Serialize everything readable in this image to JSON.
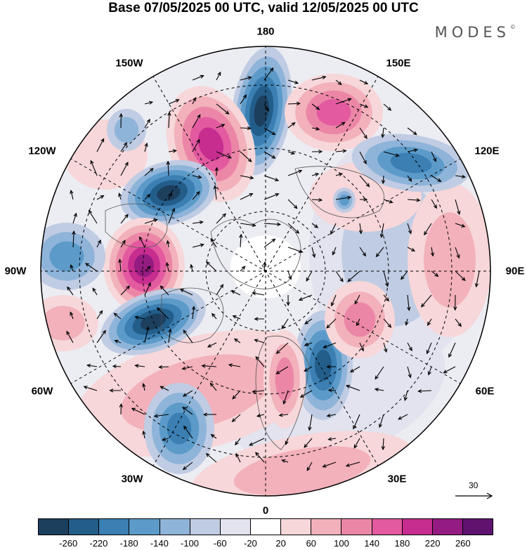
{
  "header": {
    "title": "Base 07/05/2025 00 UTC, valid 12/05/2025 00 UTC",
    "brand": "MODES",
    "brand_mark": "©"
  },
  "map": {
    "projection": "north-polar-stereographic",
    "longitude_labels": {
      "top": "180",
      "bottom": "0",
      "left": "90W",
      "right": "90E",
      "upper_left_1": "150W",
      "upper_left_2": "120W",
      "upper_right_1": "150E",
      "upper_right_2": "120E",
      "lower_left_1": "60W",
      "lower_left_2": "30W",
      "lower_right_1": "60E",
      "lower_right_2": "30E"
    },
    "reference_vector_label": "30"
  },
  "colorbar": {
    "colors": [
      "#1c3f5e",
      "#235d8a",
      "#3b7fb3",
      "#5c9bc9",
      "#8fb4d9",
      "#c0cce3",
      "#e2e3ef",
      "#ffffff",
      "#f7d7d9",
      "#f2b1bb",
      "#ec86a7",
      "#e35aa0",
      "#c62d8f",
      "#941b82",
      "#5f136f"
    ],
    "tick_labels": [
      "-260",
      "-220",
      "-180",
      "-140",
      "-100",
      "-60",
      "-20",
      "20",
      "60",
      "100",
      "140",
      "180",
      "220",
      "260"
    ]
  }
}
